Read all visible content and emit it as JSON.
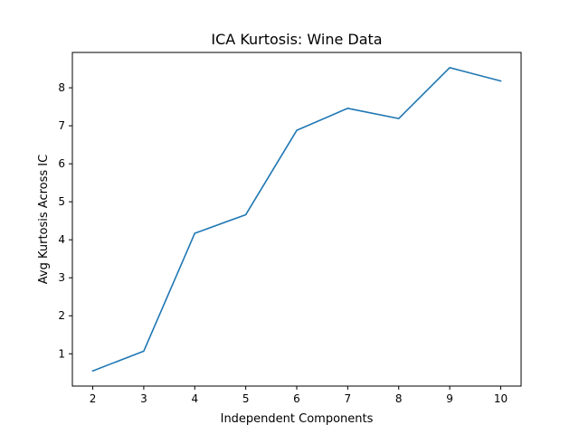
{
  "chart_data": {
    "type": "line",
    "title": "ICA Kurtosis: Wine Data",
    "xlabel": "Independent Components",
    "ylabel": "Avg Kurtosis Across IC",
    "x": [
      2,
      3,
      4,
      5,
      6,
      7,
      8,
      9,
      10
    ],
    "series": [
      {
        "values": [
          0.55,
          1.07,
          4.17,
          4.66,
          6.88,
          7.46,
          7.19,
          8.53,
          8.18
        ],
        "color": "#1f77b4"
      }
    ],
    "xlim": [
      1.6,
      10.4
    ],
    "ylim": [
      0.15,
      8.93
    ],
    "xticks": [
      2,
      3,
      4,
      5,
      6,
      7,
      8,
      9,
      10
    ],
    "yticks": [
      1,
      2,
      3,
      4,
      5,
      6,
      7,
      8
    ],
    "grid": false,
    "legend": "none"
  }
}
